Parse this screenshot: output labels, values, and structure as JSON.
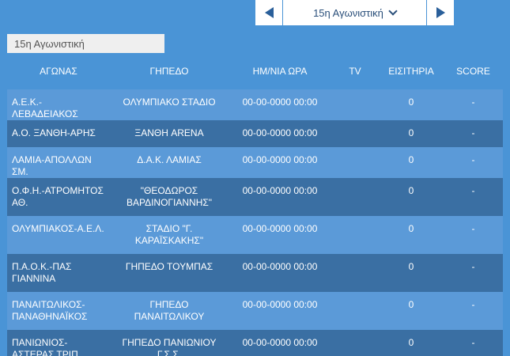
{
  "nav": {
    "round_label": "15η Αγωνιστική"
  },
  "tab_label": "15η Αγωνιστική",
  "columns": [
    "ΑΓΩΝΑΣ",
    "ΓΗΠΕΔΟ",
    "ΗΜ/ΝΙΑ ΩΡΑ",
    "TV",
    "ΕΙΣΙΤΗΡΙΑ",
    "SCORE"
  ],
  "matches": [
    {
      "match": "Α.Ε.Κ.-ΛΕΒΑΔΕΙΑΚΟΣ",
      "stadium": "ΟΛΥΜΠΙΑΚΟ ΣΤΑΔΙΟ",
      "datetime": "00-00-0000 00:00",
      "tv": "",
      "tickets": "0",
      "score": "-"
    },
    {
      "match": "Α.Ο. ΞΑΝΘΗ-ΑΡΗΣ",
      "stadium": "ΞΑΝΘΗ ARENA",
      "datetime": "00-00-0000 00:00",
      "tv": "",
      "tickets": "0",
      "score": "-"
    },
    {
      "match": "ΛΑΜΙΑ-ΑΠΟΛΛΩΝ ΣΜ.",
      "stadium": "Δ.Α.Κ. ΛΑΜΙΑΣ",
      "datetime": "00-00-0000 00:00",
      "tv": "",
      "tickets": "0",
      "score": "-"
    },
    {
      "match": "Ο.Φ.Η.-ΑΤΡΟΜΗΤΟΣ ΑΘ.",
      "stadium": "\"ΘΕΟΔΩΡΟΣ ΒΑΡΔΙΝΟΓΙΑΝΝΗΣ\"",
      "datetime": "00-00-0000 00:00",
      "tv": "",
      "tickets": "0",
      "score": "-"
    },
    {
      "match": "ΟΛΥΜΠΙΑΚΟΣ-Α.Ε.Λ.",
      "stadium": "ΣΤΑΔΙΟ \"Γ. ΚΑΡΑΪΣΚΑΚΗΣ\"",
      "datetime": "00-00-0000 00:00",
      "tv": "",
      "tickets": "0",
      "score": "-"
    },
    {
      "match": "Π.Α.Ο.Κ.-ΠΑΣ ΓΙΑΝΝΙΝΑ",
      "stadium": "ΓΗΠΕΔΟ ΤΟΥΜΠΑΣ",
      "datetime": "00-00-0000 00:00",
      "tv": "",
      "tickets": "0",
      "score": "-"
    },
    {
      "match": "ΠΑΝΑΙΤΩΛΙΚΟΣ-ΠΑΝΑΘΗΝΑΪΚΟΣ",
      "stadium": "ΓΗΠΕΔΟ ΠΑΝΑΙΤΩΛΙΚΟΥ",
      "datetime": "00-00-0000 00:00",
      "tv": "",
      "tickets": "0",
      "score": "-"
    },
    {
      "match": "ΠΑΝΙΩΝΙΟΣ-ΑΣΤΕΡΑΣ ΤΡΙΠ.",
      "stadium": "ΓΗΠΕΔΟ ΠΑΝΙΩΝΙΟΥ Γ.Σ.Σ.",
      "datetime": "00-00-0000 00:00",
      "tv": "",
      "tickets": "0",
      "score": "-"
    }
  ]
}
